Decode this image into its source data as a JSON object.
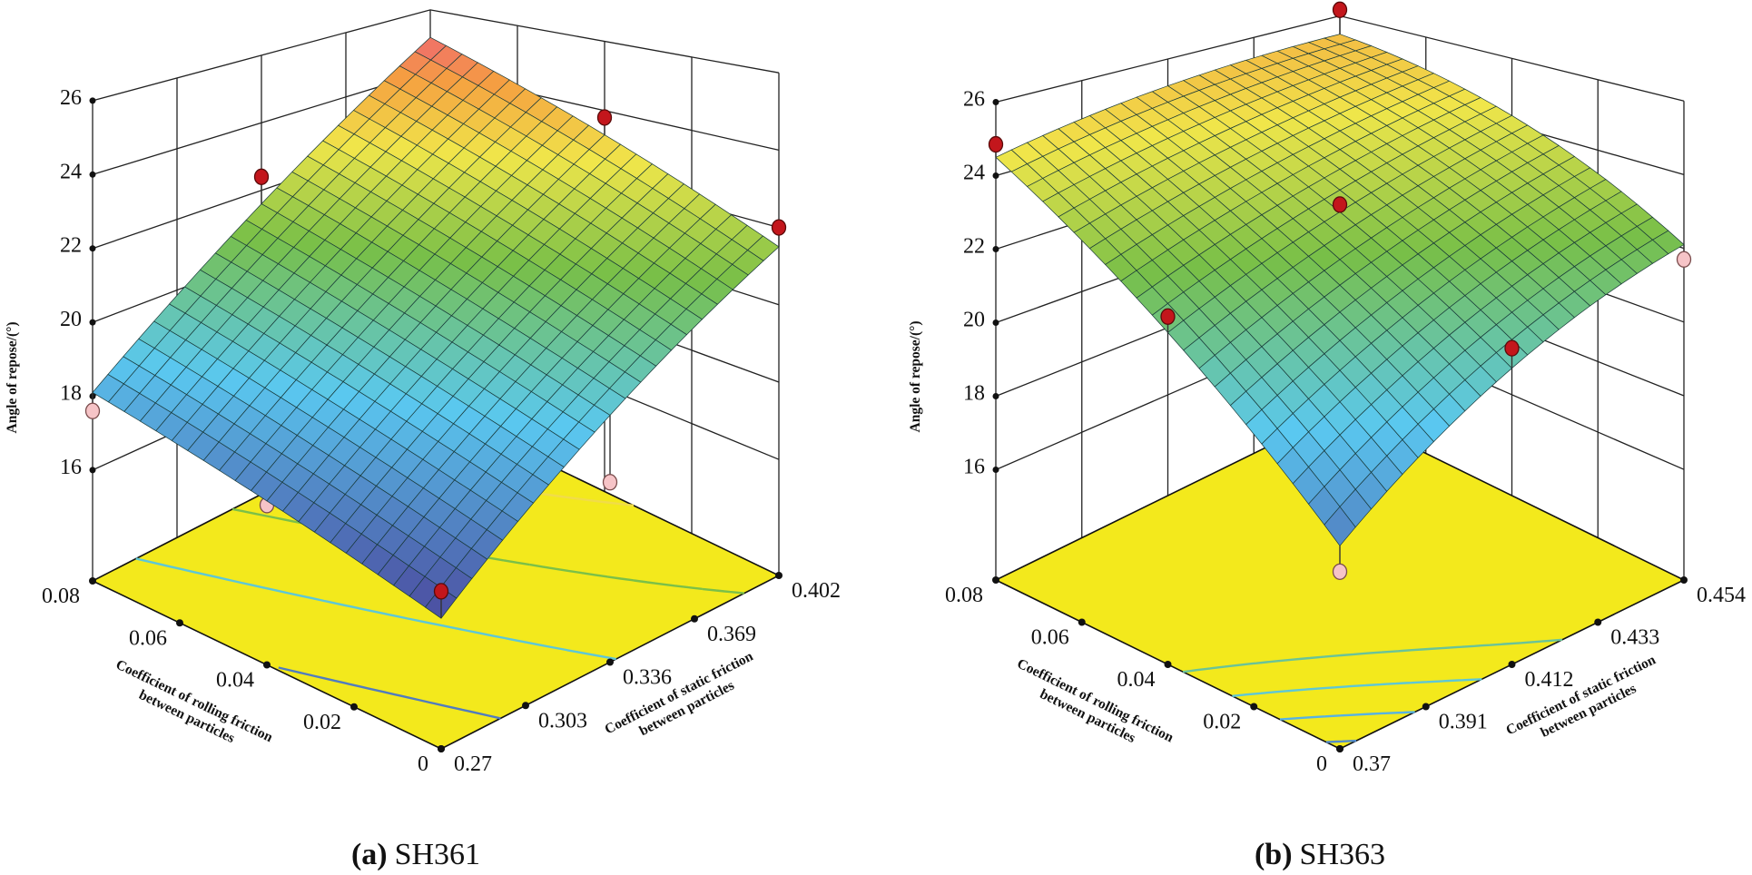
{
  "chart_data": [
    {
      "type": "surface",
      "panel_label": "(a)",
      "title": "SH361",
      "xlabel_lines": [
        "Coefficient of rolling friction",
        "between particles"
      ],
      "ylabel_lines": [
        "Coefficient of static friction",
        "between particles"
      ],
      "zlabel": "Angle of repose/(°)",
      "x_range": [
        0,
        0.08
      ],
      "x_ticks": [
        "0",
        "0.02",
        "0.04",
        "0.06",
        "0.08"
      ],
      "y_range": [
        0.27,
        0.402
      ],
      "y_ticks": [
        "0.27",
        "0.303",
        "0.336",
        "0.369",
        "0.402"
      ],
      "zlim": [
        13,
        26
      ],
      "z_ticks": [
        "16",
        "18",
        "20",
        "22",
        "24",
        "26"
      ],
      "z_tick_values": [
        16,
        18,
        20,
        22,
        24,
        26
      ],
      "colormap_range": [
        15.9,
        25.1
      ],
      "contour_levels": [
        17,
        19,
        21,
        23,
        24.5
      ],
      "surface_grid": {
        "x": [
          0,
          0.04,
          0.08
        ],
        "y": [
          0.27,
          0.336,
          0.402
        ],
        "z": [
          [
            15.9,
            18.9,
            21.5
          ],
          [
            17.0,
            20.2,
            23.3
          ],
          [
            18.1,
            21.6,
            25.1
          ]
        ]
      },
      "design_points": [
        {
          "x": 0.08,
          "y": 0.27,
          "z": 17.6,
          "position": "below"
        },
        {
          "x": 0.04,
          "y": 0.27,
          "z": 16.9,
          "position": "below"
        },
        {
          "x": 0,
          "y": 0.336,
          "z": 17.3,
          "position": "below"
        },
        {
          "x": 0.08,
          "y": 0.336,
          "z": 22.4,
          "position": "above"
        },
        {
          "x": 0.04,
          "y": 0.402,
          "z": 23.8,
          "position": "above"
        },
        {
          "x": 0,
          "y": 0.402,
          "z": 22.0,
          "position": "above"
        },
        {
          "x": 0,
          "y": 0.27,
          "z": 16.5,
          "position": "above"
        }
      ]
    },
    {
      "type": "surface",
      "panel_label": "(b)",
      "title": "SH363",
      "xlabel_lines": [
        "Coefficient of rolling friction",
        "between particles"
      ],
      "ylabel_lines": [
        "Coefficient of static friction",
        "between particles"
      ],
      "zlabel": "Angle of repose/(°)",
      "x_range": [
        0,
        0.08
      ],
      "x_ticks": [
        "0",
        "0.02",
        "0.04",
        "0.06",
        "0.08"
      ],
      "y_range": [
        0.37,
        0.454
      ],
      "y_ticks": [
        "0.37",
        "0.391",
        "0.412",
        "0.433",
        "0.454"
      ],
      "zlim": [
        13,
        26
      ],
      "z_ticks": [
        "16",
        "18",
        "20",
        "22",
        "24",
        "26"
      ],
      "z_tick_values": [
        16,
        18,
        20,
        22,
        24,
        26
      ],
      "colormap_range": [
        16.3,
        27.2
      ],
      "contour_levels": [
        18,
        19,
        20,
        21
      ],
      "surface_grid": {
        "x": [
          0,
          0.04,
          0.08
        ],
        "y": [
          0.37,
          0.412,
          0.454
        ],
        "z": [
          [
            17.7,
            20.4,
            22.1
          ],
          [
            21.3,
            23.0,
            24.3
          ],
          [
            24.5,
            25.2,
            25.4
          ]
        ]
      },
      "design_points": [
        {
          "x": 0,
          "y": 0.454,
          "z": 21.7,
          "position": "below"
        },
        {
          "x": 0,
          "y": 0.37,
          "z": 17.1,
          "position": "below"
        },
        {
          "x": 0.08,
          "y": 0.454,
          "z": 26.2,
          "position": "above"
        },
        {
          "x": 0.08,
          "y": 0.37,
          "z": 24.85,
          "position": "above"
        },
        {
          "x": 0.04,
          "y": 0.412,
          "z": 23.2,
          "position": "above"
        },
        {
          "x": 0.04,
          "y": 0.37,
          "z": 21.7,
          "position": "above"
        },
        {
          "x": 0,
          "y": 0.412,
          "z": 20.9,
          "position": "above"
        }
      ]
    }
  ],
  "colors": {
    "floor": "#f3e91c",
    "point_above": "#c3161c",
    "point_below": "#f6c4c7",
    "mesh": "#173838"
  }
}
